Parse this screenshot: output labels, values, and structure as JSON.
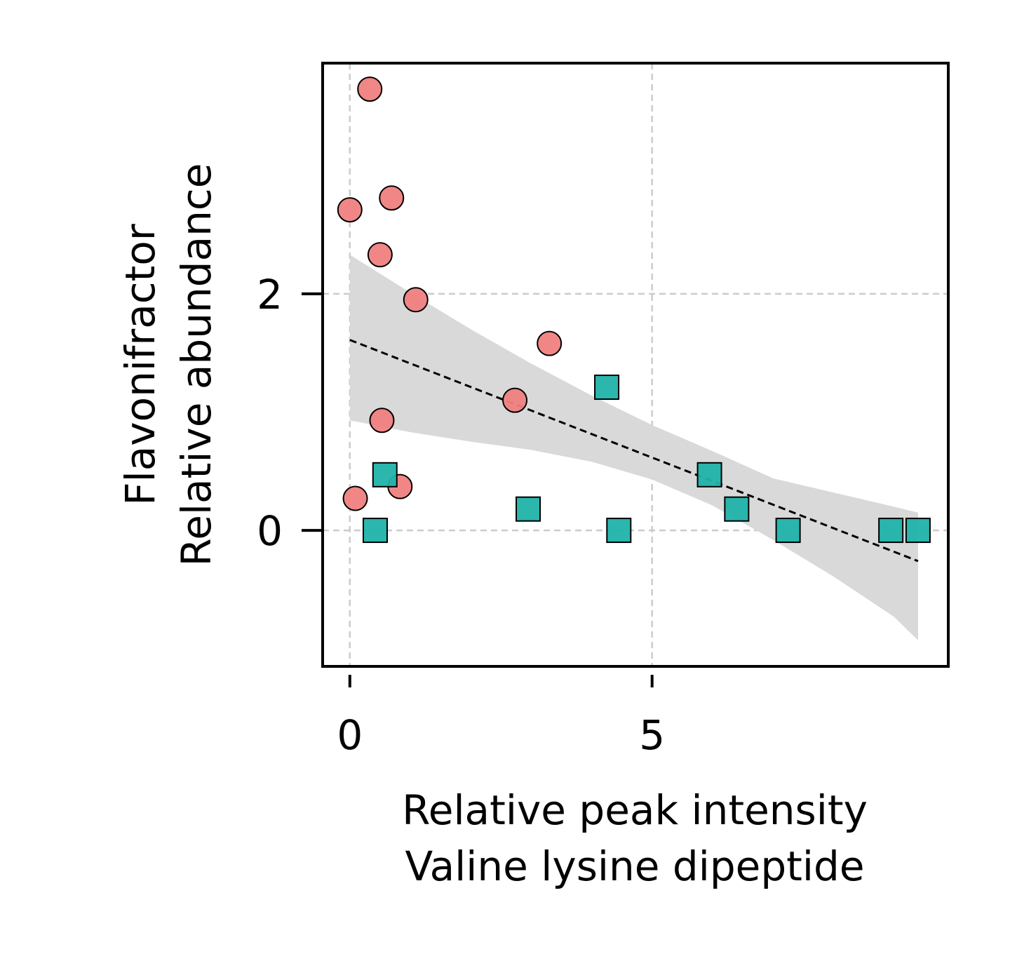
{
  "chart_data": {
    "type": "scatter",
    "title": "",
    "xlabel_lines": [
      "Relative peak intensity",
      "Valine lysine dipeptide"
    ],
    "ylabel_lines": [
      "Flavonifractor",
      "Relative abundance"
    ],
    "xlim": [
      -0.45,
      9.9
    ],
    "ylim": [
      -1.15,
      3.95
    ],
    "x_ticks": [
      0,
      5
    ],
    "y_ticks": [
      0,
      2
    ],
    "grid": true,
    "legend": "none",
    "series": [
      {
        "marker": "circle",
        "color": "#f08080",
        "points": [
          {
            "x": 0.33,
            "y": 3.73
          },
          {
            "x": 0.0,
            "y": 2.71
          },
          {
            "x": 0.69,
            "y": 2.81
          },
          {
            "x": 0.5,
            "y": 2.33
          },
          {
            "x": 1.09,
            "y": 1.95
          },
          {
            "x": 3.3,
            "y": 1.58
          },
          {
            "x": 2.73,
            "y": 1.1
          },
          {
            "x": 0.53,
            "y": 0.93
          },
          {
            "x": 0.83,
            "y": 0.37
          },
          {
            "x": 0.09,
            "y": 0.27
          }
        ]
      },
      {
        "marker": "square",
        "color": "#20b2aa",
        "points": [
          {
            "x": 0.42,
            "y": 0.0
          },
          {
            "x": 0.58,
            "y": 0.47
          },
          {
            "x": 2.95,
            "y": 0.18
          },
          {
            "x": 4.25,
            "y": 1.21
          },
          {
            "x": 4.45,
            "y": 0.0
          },
          {
            "x": 5.95,
            "y": 0.47
          },
          {
            "x": 6.4,
            "y": 0.18
          },
          {
            "x": 7.25,
            "y": 0.0
          },
          {
            "x": 8.95,
            "y": 0.0
          },
          {
            "x": 9.4,
            "y": 0.0
          }
        ]
      }
    ],
    "trend_line": {
      "x": [
        0.0,
        9.4
      ],
      "y": [
        1.61,
        -0.26
      ]
    },
    "confidence_band": {
      "x": [
        0.0,
        1.0,
        2.0,
        3.0,
        4.0,
        5.0,
        6.0,
        7.0,
        8.0,
        9.0,
        9.4
      ],
      "upper": [
        2.33,
        2.01,
        1.7,
        1.41,
        1.14,
        0.89,
        0.67,
        0.44,
        0.32,
        0.2,
        0.15
      ],
      "lower": [
        0.93,
        0.83,
        0.75,
        0.68,
        0.58,
        0.43,
        0.21,
        -0.08,
        -0.39,
        -0.73,
        -0.93
      ]
    }
  }
}
